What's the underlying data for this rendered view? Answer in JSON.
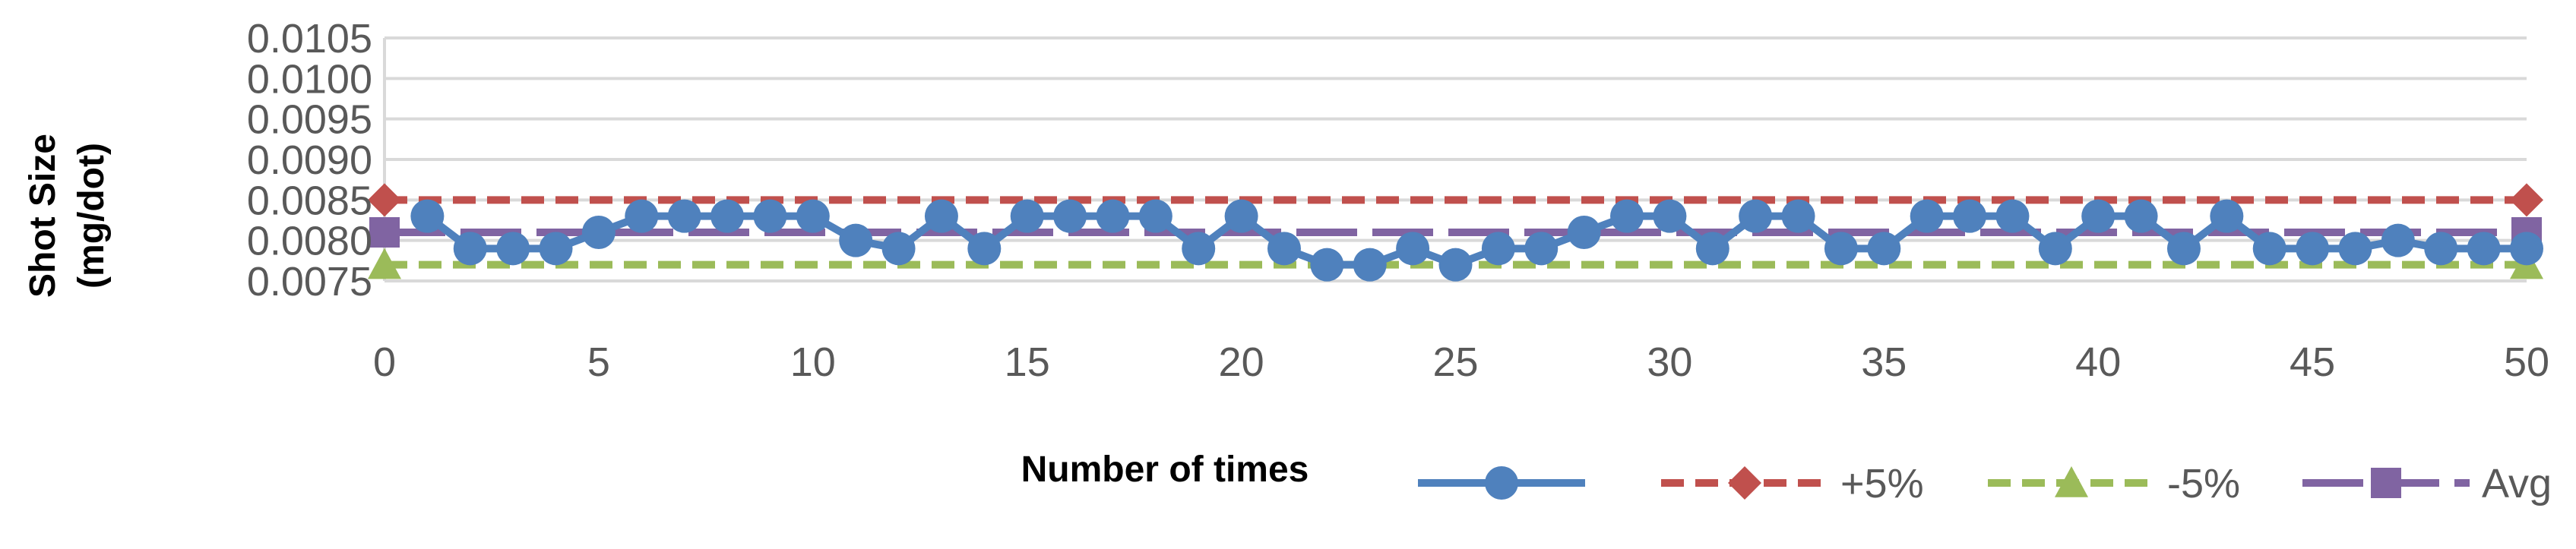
{
  "chart_data": {
    "type": "line",
    "title": "",
    "xlabel": "Number of times",
    "ylabel_lines": [
      "Shot Size",
      "(mg/dot)"
    ],
    "xlim": [
      0,
      50
    ],
    "ylim": [
      0.0075,
      0.0105
    ],
    "x_ticks": [
      0,
      5,
      10,
      15,
      20,
      25,
      30,
      35,
      40,
      45,
      50
    ],
    "y_ticks": [
      "0.0075",
      "0.0080",
      "0.0085",
      "0.0090",
      "0.0095",
      "0.0100",
      "0.0105"
    ],
    "y_tick_values": [
      0.0075,
      0.008,
      0.0085,
      0.009,
      0.0095,
      0.01,
      0.0105
    ],
    "grid": "horizontal",
    "legend_position": "bottom-right",
    "series": [
      {
        "name": "",
        "color": "#4f81bd",
        "marker": "circle",
        "dash": "solid",
        "x": [
          1,
          2,
          3,
          4,
          5,
          6,
          7,
          8,
          9,
          10,
          11,
          12,
          13,
          14,
          15,
          16,
          17,
          18,
          19,
          20,
          21,
          22,
          23,
          24,
          25,
          26,
          27,
          28,
          29,
          30,
          31,
          32,
          33,
          34,
          35,
          36,
          37,
          38,
          39,
          40,
          41,
          42,
          43,
          44,
          45,
          46,
          47,
          48,
          49,
          50
        ],
        "values": [
          0.0083,
          0.0079,
          0.0079,
          0.0079,
          0.0081,
          0.0083,
          0.0083,
          0.0083,
          0.0083,
          0.0083,
          0.008,
          0.0079,
          0.0083,
          0.0079,
          0.0083,
          0.0083,
          0.0083,
          0.0083,
          0.0079,
          0.0083,
          0.0079,
          0.0077,
          0.0077,
          0.0079,
          0.0077,
          0.0079,
          0.0079,
          0.0081,
          0.0083,
          0.0083,
          0.0079,
          0.0083,
          0.0083,
          0.0079,
          0.0079,
          0.0083,
          0.0083,
          0.0083,
          0.0079,
          0.0083,
          0.0083,
          0.0079,
          0.0083,
          0.0079,
          0.0079,
          0.0079,
          0.008,
          0.0079,
          0.0079,
          0.0079
        ]
      },
      {
        "name": "+5%",
        "color": "#c0504d",
        "marker": "diamond",
        "dash": "dashed",
        "x": [
          0,
          50
        ],
        "values": [
          0.0085,
          0.0085
        ]
      },
      {
        "name": "-5%",
        "color": "#9bbb59",
        "marker": "triangle",
        "dash": "dashed",
        "x": [
          0,
          50
        ],
        "values": [
          0.0077,
          0.0077
        ]
      },
      {
        "name": "Avg",
        "color": "#8064a2",
        "marker": "square",
        "dash": "long-dash",
        "x": [
          0,
          50
        ],
        "values": [
          0.0081,
          0.0081
        ]
      }
    ]
  }
}
